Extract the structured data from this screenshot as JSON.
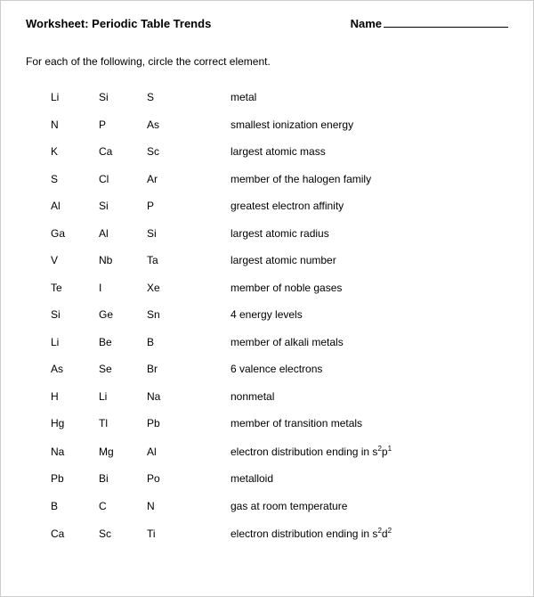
{
  "header": {
    "title": "Worksheet: Periodic Table Trends",
    "name_label": "Name"
  },
  "instructions": "For each of the following, circle the correct element.",
  "rows": [
    {
      "e1": "Li",
      "e2": "Si",
      "e3": "S",
      "desc": "metal"
    },
    {
      "e1": "N",
      "e2": "P",
      "e3": "As",
      "desc": "smallest ionization energy"
    },
    {
      "e1": "K",
      "e2": "Ca",
      "e3": "Sc",
      "desc": "largest atomic mass"
    },
    {
      "e1": "S",
      "e2": "Cl",
      "e3": "Ar",
      "desc": "member of the halogen family"
    },
    {
      "e1": "Al",
      "e2": "Si",
      "e3": "P",
      "desc": "greatest electron affinity"
    },
    {
      "e1": "Ga",
      "e2": "Al",
      "e3": "Si",
      "desc": "largest atomic radius"
    },
    {
      "e1": "V",
      "e2": "Nb",
      "e3": "Ta",
      "desc": "largest atomic number"
    },
    {
      "e1": "Te",
      "e2": "I",
      "e3": "Xe",
      "desc": "member of noble gases"
    },
    {
      "e1": "Si",
      "e2": "Ge",
      "e3": "Sn",
      "desc": "4 energy levels"
    },
    {
      "e1": "Li",
      "e2": "Be",
      "e3": "B",
      "desc": "member of alkali metals"
    },
    {
      "e1": "As",
      "e2": "Se",
      "e3": "Br",
      "desc": "6 valence electrons"
    },
    {
      "e1": "H",
      "e2": "Li",
      "e3": "Na",
      "desc": "nonmetal"
    },
    {
      "e1": "Hg",
      "e2": "Tl",
      "e3": "Pb",
      "desc": "member of transition metals"
    },
    {
      "e1": "Na",
      "e2": "Mg",
      "e3": "Al",
      "desc_html": "electron distribution ending in s<sup>2</sup>p<sup>1</sup>"
    },
    {
      "e1": "Pb",
      "e2": "Bi",
      "e3": "Po",
      "desc": "metalloid"
    },
    {
      "e1": "B",
      "e2": "C",
      "e3": "N",
      "desc": "gas at room temperature"
    },
    {
      "e1": "Ca",
      "e2": "Sc",
      "e3": "Ti",
      "desc_html": "electron distribution ending in s<sup>2</sup>d<sup>2</sup>"
    }
  ]
}
